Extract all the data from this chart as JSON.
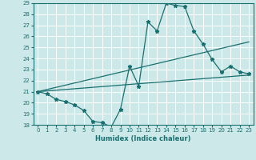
{
  "xlabel": "Humidex (Indice chaleur)",
  "bg_color": "#cce8e8",
  "grid_color": "#ffffff",
  "line_color": "#1a7070",
  "xlim": [
    -0.5,
    23.5
  ],
  "ylim": [
    18,
    29
  ],
  "xticks": [
    0,
    1,
    2,
    3,
    4,
    5,
    6,
    7,
    8,
    9,
    10,
    11,
    12,
    13,
    14,
    15,
    16,
    17,
    18,
    19,
    20,
    21,
    22,
    23
  ],
  "yticks": [
    18,
    19,
    20,
    21,
    22,
    23,
    24,
    25,
    26,
    27,
    28,
    29
  ],
  "line1_x": [
    0,
    1,
    2,
    3,
    4,
    5,
    6,
    7,
    8,
    9,
    10,
    11,
    12,
    13,
    14,
    15,
    16,
    17,
    18,
    19,
    20,
    21,
    22,
    23
  ],
  "line1_y": [
    21.0,
    20.8,
    20.3,
    20.1,
    19.8,
    19.3,
    18.3,
    18.2,
    17.8,
    19.4,
    23.3,
    21.5,
    27.3,
    26.5,
    29.0,
    28.8,
    28.7,
    26.5,
    25.3,
    23.9,
    22.8,
    23.3,
    22.8,
    22.6
  ],
  "line2_x": [
    0,
    23
  ],
  "line2_y": [
    21.0,
    22.5
  ],
  "line3_x": [
    0,
    23
  ],
  "line3_y": [
    21.0,
    25.5
  ],
  "marker": "*",
  "markersize": 3.5,
  "linewidth": 0.9
}
